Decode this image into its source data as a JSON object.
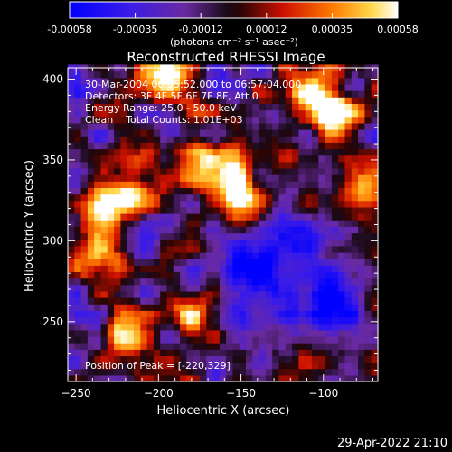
{
  "chart_data": {
    "type": "heatmap",
    "title": "Reconstructed RHESSI Image",
    "xlabel": "Heliocentric X (arcsec)",
    "ylabel": "Heliocentric Y (arcsec)",
    "xlim": [
      -255,
      -67
    ],
    "ylim": [
      213,
      407
    ],
    "x_ticks": [
      -250,
      -200,
      -150,
      -100
    ],
    "y_ticks": [
      250,
      300,
      350,
      400
    ],
    "colorbar": {
      "ticks": [
        "-0.00058",
        "-0.00035",
        "-0.00012",
        "0.00012",
        "0.00035",
        "0.00058"
      ],
      "unit_label": "(photons cm⁻² s⁻¹ asec⁻²)",
      "range": [
        -0.00058,
        0.00058
      ]
    },
    "annotations": [
      "30-Mar-2004 06:55:52.000 to 06:57:04.000",
      "Detectors: 3F 4F 5F 6F 7F 8F, Att 0",
      "Energy Range: 25.0 - 50.0 keV",
      "Clean    Total Counts: 1.01E+03"
    ],
    "peak_label": "Position of Peak = [-220,329]",
    "peak": {
      "x": -220,
      "y": 329
    },
    "bright_regions": [
      {
        "x": -220,
        "y": 329,
        "level": 1.0
      },
      {
        "x": -235,
        "y": 312,
        "level": 0.85
      },
      {
        "x": -240,
        "y": 290,
        "level": 0.75
      },
      {
        "x": -180,
        "y": 352,
        "level": 0.8
      },
      {
        "x": -165,
        "y": 335,
        "level": 0.75
      },
      {
        "x": -150,
        "y": 328,
        "level": 0.7
      },
      {
        "x": -200,
        "y": 398,
        "level": 0.85
      },
      {
        "x": -110,
        "y": 385,
        "level": 0.85
      },
      {
        "x": -95,
        "y": 378,
        "level": 0.75
      },
      {
        "x": -80,
        "y": 330,
        "level": 0.7
      },
      {
        "x": -225,
        "y": 240,
        "level": 0.7
      },
      {
        "x": -185,
        "y": 255,
        "level": 0.7
      }
    ],
    "dark_regions": [
      {
        "x": -125,
        "y": 300,
        "level": -0.6
      },
      {
        "x": -140,
        "y": 280,
        "level": -0.55
      },
      {
        "x": -110,
        "y": 270,
        "level": -0.5
      },
      {
        "x": -100,
        "y": 255,
        "level": -0.5
      },
      {
        "x": -90,
        "y": 300,
        "level": -0.45
      }
    ]
  },
  "timestamp": "29-Apr-2022 21:10",
  "colors": {
    "background": "#000000",
    "foreground": "#ffffff"
  }
}
